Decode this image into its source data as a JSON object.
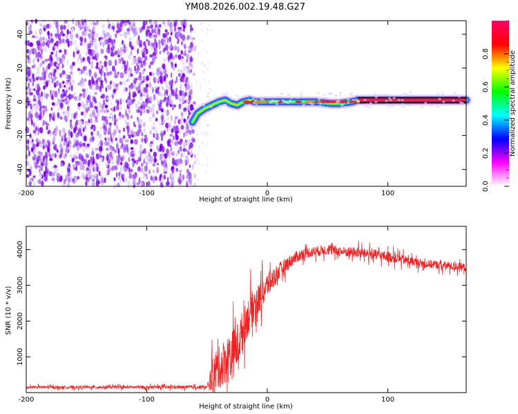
{
  "title": "YM08.2026.002.19.48.G27",
  "chart_data": [
    {
      "type": "heatmap",
      "xlabel": "Height of straight line (km)",
      "ylabel": "Frequency (Hz)",
      "xlim": [
        -200,
        165
      ],
      "ylim": [
        -50,
        48
      ],
      "xticks": [
        -200,
        -100,
        0,
        100
      ],
      "yticks": [
        -40,
        -20,
        0,
        20,
        40
      ],
      "noise_region_x": [
        -200,
        -60
      ],
      "ridge": [
        [
          -62,
          -12
        ],
        [
          -58,
          -7
        ],
        [
          -52,
          -4
        ],
        [
          -46,
          -2
        ],
        [
          -40,
          0
        ],
        [
          -35,
          1
        ],
        [
          -30,
          -1
        ],
        [
          -25,
          -2
        ],
        [
          -20,
          0
        ],
        [
          -15,
          1
        ],
        [
          -10,
          0
        ],
        [
          0,
          0
        ],
        [
          20,
          0
        ],
        [
          40,
          0
        ],
        [
          52,
          -1
        ],
        [
          60,
          -1
        ],
        [
          70,
          0
        ],
        [
          75,
          1
        ],
        [
          165,
          1
        ]
      ],
      "colorbar": {
        "label": "Normalized spectral amplitude",
        "ticks": [
          0.0,
          0.2,
          0.4,
          0.6,
          0.8
        ],
        "range": [
          0,
          1
        ],
        "colors": [
          "#ffffff",
          "#ff00ff",
          "#0000ff",
          "#00ffff",
          "#00ff00",
          "#ffff00",
          "#ff0000",
          "#ff0066"
        ]
      }
    },
    {
      "type": "line",
      "xlabel": "Height of straight line (km)",
      "ylabel": "SNR (10 * v/v)",
      "xlim": [
        -200,
        165
      ],
      "ylim": [
        0,
        4650
      ],
      "xticks": [
        -200,
        -100,
        0,
        100
      ],
      "yticks": [
        1000,
        2000,
        3000,
        4000
      ],
      "color": "#ee2222",
      "envelope": {
        "x": [
          -200,
          -50,
          -45,
          -40,
          -35,
          -30,
          -25,
          -20,
          -15,
          -10,
          -5,
          0,
          10,
          20,
          30,
          40,
          50,
          60,
          80,
          100,
          130,
          165
        ],
        "base": [
          150,
          150,
          500,
          700,
          900,
          1000,
          1300,
          1800,
          2200,
          2500,
          2700,
          3000,
          3400,
          3700,
          3900,
          3950,
          4000,
          3950,
          3900,
          3800,
          3600,
          3500
        ],
        "amp": [
          60,
          80,
          900,
          1000,
          1100,
          1200,
          1100,
          900,
          900,
          800,
          700,
          600,
          400,
          300,
          250,
          250,
          250,
          250,
          250,
          250,
          200,
          200
        ]
      }
    }
  ]
}
